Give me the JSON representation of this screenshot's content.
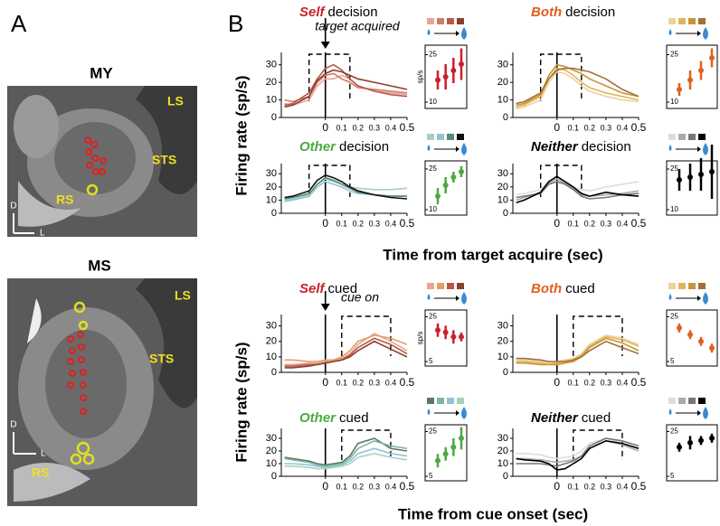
{
  "figure": {
    "panels": [
      "A",
      "B"
    ],
    "mri": [
      {
        "title": "MY",
        "labels": [
          "LS",
          "STS",
          "RS"
        ],
        "axes": [
          "D",
          "L"
        ]
      },
      {
        "title": "MS",
        "labels": [
          "LS",
          "STS",
          "RS"
        ],
        "axes": [
          "D",
          "L"
        ]
      }
    ],
    "y_label": "Firing rate (sp/s)",
    "x_label_decision": "Time from target acquire (sec)",
    "x_label_cued": "Time from cue onset (sec)",
    "annotations": [
      "target acquired",
      "cue on"
    ]
  },
  "chart_data": [
    {
      "type": "line",
      "title_bold": "Self",
      "title_rest": "decision",
      "color": "#cc1f2a",
      "x": [
        -0.25,
        -0.2,
        -0.1,
        -0.05,
        0,
        0.05,
        0.1,
        0.15,
        0.2,
        0.3,
        0.4,
        0.5
      ],
      "xlim": [
        -0.27,
        0.5
      ],
      "ylim": [
        0,
        35
      ],
      "xticks": [
        0,
        0.1,
        0.2,
        0.3,
        0.4,
        0.5
      ],
      "yticks": [
        0,
        10,
        20,
        30
      ],
      "window": [
        -0.1,
        0.15
      ],
      "series": [
        {
          "color": "#e8a39a",
          "values": [
            8,
            7,
            10,
            18,
            22,
            22,
            24,
            22,
            18,
            15,
            14,
            13
          ]
        },
        {
          "color": "#d27a68",
          "values": [
            10,
            9,
            12,
            20,
            24,
            25,
            22,
            20,
            17,
            16,
            15,
            14
          ]
        },
        {
          "color": "#b8574a",
          "values": [
            7,
            8,
            14,
            22,
            28,
            30,
            27,
            22,
            18,
            15,
            13,
            12
          ]
        },
        {
          "color": "#8a3f2e",
          "values": [
            6,
            7,
            12,
            21,
            25,
            27,
            26,
            24,
            22,
            20,
            18,
            16
          ]
        }
      ],
      "inset": {
        "values": [
          17,
          18,
          20,
          22
        ],
        "errors": [
          3,
          4,
          4,
          5
        ],
        "ylim": [
          8,
          28
        ],
        "yticks": [
          10,
          25
        ],
        "ylabel": "sp/s"
      }
    },
    {
      "type": "line",
      "title_bold": "Both",
      "title_rest": "decision",
      "color": "#e06020",
      "x": [
        -0.25,
        -0.2,
        -0.1,
        -0.05,
        0,
        0.05,
        0.1,
        0.15,
        0.2,
        0.3,
        0.4,
        0.5
      ],
      "xlim": [
        -0.27,
        0.5
      ],
      "ylim": [
        0,
        35
      ],
      "xticks": [
        0,
        0.1,
        0.2,
        0.3,
        0.4,
        0.5
      ],
      "yticks": [
        0,
        10,
        20,
        30
      ],
      "window": [
        -0.1,
        0.15
      ],
      "series": [
        {
          "color": "#ecd49a",
          "values": [
            5,
            6,
            10,
            20,
            26,
            25,
            22,
            18,
            15,
            12,
            10,
            9
          ]
        },
        {
          "color": "#e0b55a",
          "values": [
            6,
            7,
            12,
            22,
            28,
            27,
            24,
            20,
            17,
            14,
            12,
            10
          ]
        },
        {
          "color": "#c99438",
          "values": [
            7,
            8,
            13,
            24,
            30,
            29,
            27,
            25,
            22,
            18,
            14,
            12
          ]
        },
        {
          "color": "#a0703a",
          "values": [
            8,
            9,
            14,
            22,
            27,
            28,
            28,
            27,
            26,
            22,
            16,
            12
          ]
        }
      ],
      "inset": {
        "values": [
          14,
          17,
          20,
          24
        ],
        "errors": [
          2,
          3,
          3,
          3
        ],
        "ylim": [
          8,
          28
        ],
        "yticks": [
          10,
          25
        ]
      }
    },
    {
      "type": "line",
      "title_bold": "Other",
      "title_rest": "decision",
      "color": "#4aaa40",
      "x": [
        -0.25,
        -0.2,
        -0.1,
        -0.05,
        0,
        0.05,
        0.1,
        0.15,
        0.2,
        0.3,
        0.4,
        0.5
      ],
      "xlim": [
        -0.27,
        0.5
      ],
      "ylim": [
        0,
        35
      ],
      "xticks": [
        0,
        0.1,
        0.2,
        0.3,
        0.4,
        0.5
      ],
      "yticks": [
        0,
        10,
        20,
        30
      ],
      "window": [
        -0.1,
        0.15
      ],
      "series": [
        {
          "color": "#a8d0c0",
          "values": [
            10,
            11,
            14,
            22,
            26,
            24,
            22,
            20,
            19,
            18,
            18,
            19
          ]
        },
        {
          "color": "#8fc3d6",
          "values": [
            9,
            10,
            13,
            20,
            24,
            22,
            20,
            17,
            15,
            14,
            13,
            13
          ]
        },
        {
          "color": "#5a8a70",
          "values": [
            11,
            12,
            15,
            22,
            27,
            25,
            22,
            19,
            16,
            14,
            13,
            13
          ]
        },
        {
          "color": "#111111",
          "values": [
            12,
            13,
            17,
            25,
            29,
            27,
            24,
            20,
            17,
            14,
            12,
            11
          ]
        }
      ],
      "inset": {
        "values": [
          15,
          19,
          22,
          24
        ],
        "errors": [
          3,
          3,
          2,
          2
        ],
        "ylim": [
          8,
          28
        ],
        "yticks": [
          10,
          25
        ]
      }
    },
    {
      "type": "line",
      "title_bold": "Neither",
      "title_rest": "decision",
      "color": "#000000",
      "x": [
        -0.25,
        -0.2,
        -0.1,
        -0.05,
        0,
        0.05,
        0.1,
        0.15,
        0.2,
        0.3,
        0.4,
        0.5
      ],
      "xlim": [
        -0.27,
        0.5
      ],
      "ylim": [
        0,
        35
      ],
      "xticks": [
        0,
        0.1,
        0.2,
        0.3,
        0.4,
        0.5
      ],
      "yticks": [
        0,
        10,
        20,
        30
      ],
      "window": [
        -0.1,
        0.15
      ],
      "series": [
        {
          "color": "#dddddd",
          "values": [
            14,
            15,
            18,
            24,
            26,
            24,
            20,
            18,
            17,
            20,
            22,
            24
          ]
        },
        {
          "color": "#aaaaaa",
          "values": [
            10,
            12,
            16,
            23,
            26,
            23,
            19,
            14,
            13,
            14,
            15,
            17
          ]
        },
        {
          "color": "#777777",
          "values": [
            12,
            13,
            15,
            22,
            24,
            22,
            18,
            13,
            11,
            12,
            14,
            15
          ]
        },
        {
          "color": "#000000",
          "values": [
            8,
            10,
            16,
            24,
            28,
            24,
            20,
            15,
            13,
            16,
            14,
            13
          ]
        }
      ],
      "inset": {
        "values": [
          21,
          22,
          23,
          24
        ],
        "errors": [
          4,
          5,
          6,
          10
        ],
        "ylim": [
          8,
          28
        ],
        "yticks": [
          10,
          25
        ]
      }
    },
    {
      "type": "line",
      "title_bold": "Self",
      "title_rest": "cued",
      "color": "#cc1f2a",
      "x": [
        -0.25,
        -0.2,
        -0.1,
        -0.05,
        0,
        0.05,
        0.1,
        0.15,
        0.2,
        0.3,
        0.4,
        0.5
      ],
      "xlim": [
        -0.27,
        0.5
      ],
      "ylim": [
        0,
        35
      ],
      "xticks": [
        0,
        0.1,
        0.2,
        0.3,
        0.4,
        0.5
      ],
      "yticks": [
        0,
        10,
        20,
        30
      ],
      "window": [
        0.1,
        0.4
      ],
      "series": [
        {
          "color": "#e8a39a",
          "values": [
            5,
            5,
            6,
            6,
            7,
            8,
            9,
            12,
            18,
            25,
            20,
            14
          ]
        },
        {
          "color": "#e0a060",
          "values": [
            8,
            8,
            7,
            7,
            8,
            8,
            10,
            14,
            20,
            24,
            22,
            18
          ]
        },
        {
          "color": "#b8574a",
          "values": [
            4,
            4,
            5,
            5,
            6,
            7,
            8,
            11,
            16,
            22,
            18,
            12
          ]
        },
        {
          "color": "#8a3f2e",
          "values": [
            3,
            3,
            4,
            5,
            6,
            7,
            8,
            10,
            14,
            20,
            15,
            10
          ]
        }
      ],
      "inset": {
        "values": [
          19,
          18,
          16,
          16
        ],
        "errors": [
          3,
          3,
          3,
          2
        ],
        "ylim": [
          3,
          28
        ],
        "yticks": [
          5,
          25
        ],
        "ylabel": "sp/s"
      }
    },
    {
      "type": "line",
      "title_bold": "Both",
      "title_rest": "cued",
      "color": "#e06020",
      "x": [
        -0.25,
        -0.2,
        -0.1,
        -0.05,
        0,
        0.05,
        0.1,
        0.15,
        0.2,
        0.3,
        0.4,
        0.5
      ],
      "xlim": [
        -0.27,
        0.5
      ],
      "ylim": [
        0,
        35
      ],
      "xticks": [
        0,
        0.1,
        0.2,
        0.3,
        0.4,
        0.5
      ],
      "yticks": [
        0,
        10,
        20,
        30
      ],
      "window": [
        0.1,
        0.4
      ],
      "series": [
        {
          "color": "#ecd49a",
          "values": [
            8,
            8,
            7,
            6,
            7,
            8,
            9,
            12,
            18,
            24,
            22,
            18
          ]
        },
        {
          "color": "#e0b55a",
          "values": [
            7,
            7,
            6,
            5,
            6,
            7,
            8,
            11,
            17,
            23,
            21,
            17
          ]
        },
        {
          "color": "#c99438",
          "values": [
            6,
            6,
            5,
            5,
            5,
            6,
            7,
            10,
            16,
            22,
            19,
            14
          ]
        },
        {
          "color": "#a0703a",
          "values": [
            9,
            9,
            8,
            7,
            7,
            7,
            8,
            10,
            14,
            20,
            16,
            12
          ]
        }
      ],
      "inset": {
        "values": [
          20,
          17,
          14,
          11
        ],
        "errors": [
          2,
          2,
          2,
          2
        ],
        "ylim": [
          3,
          28
        ],
        "yticks": [
          5,
          25
        ]
      }
    },
    {
      "type": "line",
      "title_bold": "Other",
      "title_rest": "cued",
      "color": "#4aaa40",
      "x": [
        -0.25,
        -0.2,
        -0.1,
        -0.05,
        0,
        0.05,
        0.1,
        0.15,
        0.2,
        0.3,
        0.4,
        0.5
      ],
      "xlim": [
        -0.27,
        0.5
      ],
      "ylim": [
        0,
        35
      ],
      "xticks": [
        0,
        0.1,
        0.2,
        0.3,
        0.4,
        0.5
      ],
      "yticks": [
        0,
        10,
        20,
        30
      ],
      "window": [
        0.1,
        0.4
      ],
      "series": [
        {
          "color": "#5a7a5a",
          "values": [
            15,
            14,
            12,
            10,
            9,
            10,
            11,
            16,
            26,
            30,
            22,
            20
          ]
        },
        {
          "color": "#7ab8a0",
          "values": [
            14,
            13,
            11,
            9,
            8,
            9,
            10,
            14,
            22,
            28,
            24,
            22
          ]
        },
        {
          "color": "#8fc3d6",
          "values": [
            10,
            10,
            9,
            8,
            7,
            8,
            9,
            12,
            18,
            22,
            18,
            16
          ]
        },
        {
          "color": "#a8d0c0",
          "values": [
            8,
            8,
            7,
            6,
            6,
            7,
            8,
            10,
            15,
            18,
            15,
            13
          ]
        }
      ],
      "inset": {
        "values": [
          12,
          15,
          18,
          22
        ],
        "errors": [
          3,
          3,
          4,
          5
        ],
        "ylim": [
          3,
          28
        ],
        "yticks": [
          5,
          25
        ]
      }
    },
    {
      "type": "line",
      "title_bold": "Neither",
      "title_rest": "cued",
      "color": "#000000",
      "x": [
        -0.25,
        -0.2,
        -0.1,
        -0.05,
        0,
        0.05,
        0.1,
        0.15,
        0.2,
        0.3,
        0.4,
        0.5
      ],
      "xlim": [
        -0.27,
        0.5
      ],
      "ylim": [
        0,
        35
      ],
      "xticks": [
        0,
        0.1,
        0.2,
        0.3,
        0.4,
        0.5
      ],
      "yticks": [
        0,
        10,
        20,
        30
      ],
      "window": [
        0.1,
        0.4
      ],
      "series": [
        {
          "color": "#dddddd",
          "values": [
            18,
            18,
            17,
            15,
            14,
            15,
            16,
            20,
            26,
            30,
            26,
            22
          ]
        },
        {
          "color": "#aaaaaa",
          "values": [
            14,
            14,
            13,
            12,
            11,
            12,
            13,
            16,
            22,
            28,
            25,
            20
          ]
        },
        {
          "color": "#777777",
          "values": [
            10,
            10,
            10,
            9,
            8,
            10,
            12,
            16,
            24,
            30,
            28,
            24
          ]
        },
        {
          "color": "#000000",
          "values": [
            14,
            13,
            12,
            10,
            5,
            6,
            10,
            14,
            22,
            28,
            26,
            22
          ]
        }
      ],
      "inset": {
        "values": [
          18,
          20,
          21,
          22
        ],
        "errors": [
          2,
          3,
          2,
          2
        ],
        "ylim": [
          3,
          28
        ],
        "yticks": [
          5,
          25
        ]
      }
    }
  ]
}
